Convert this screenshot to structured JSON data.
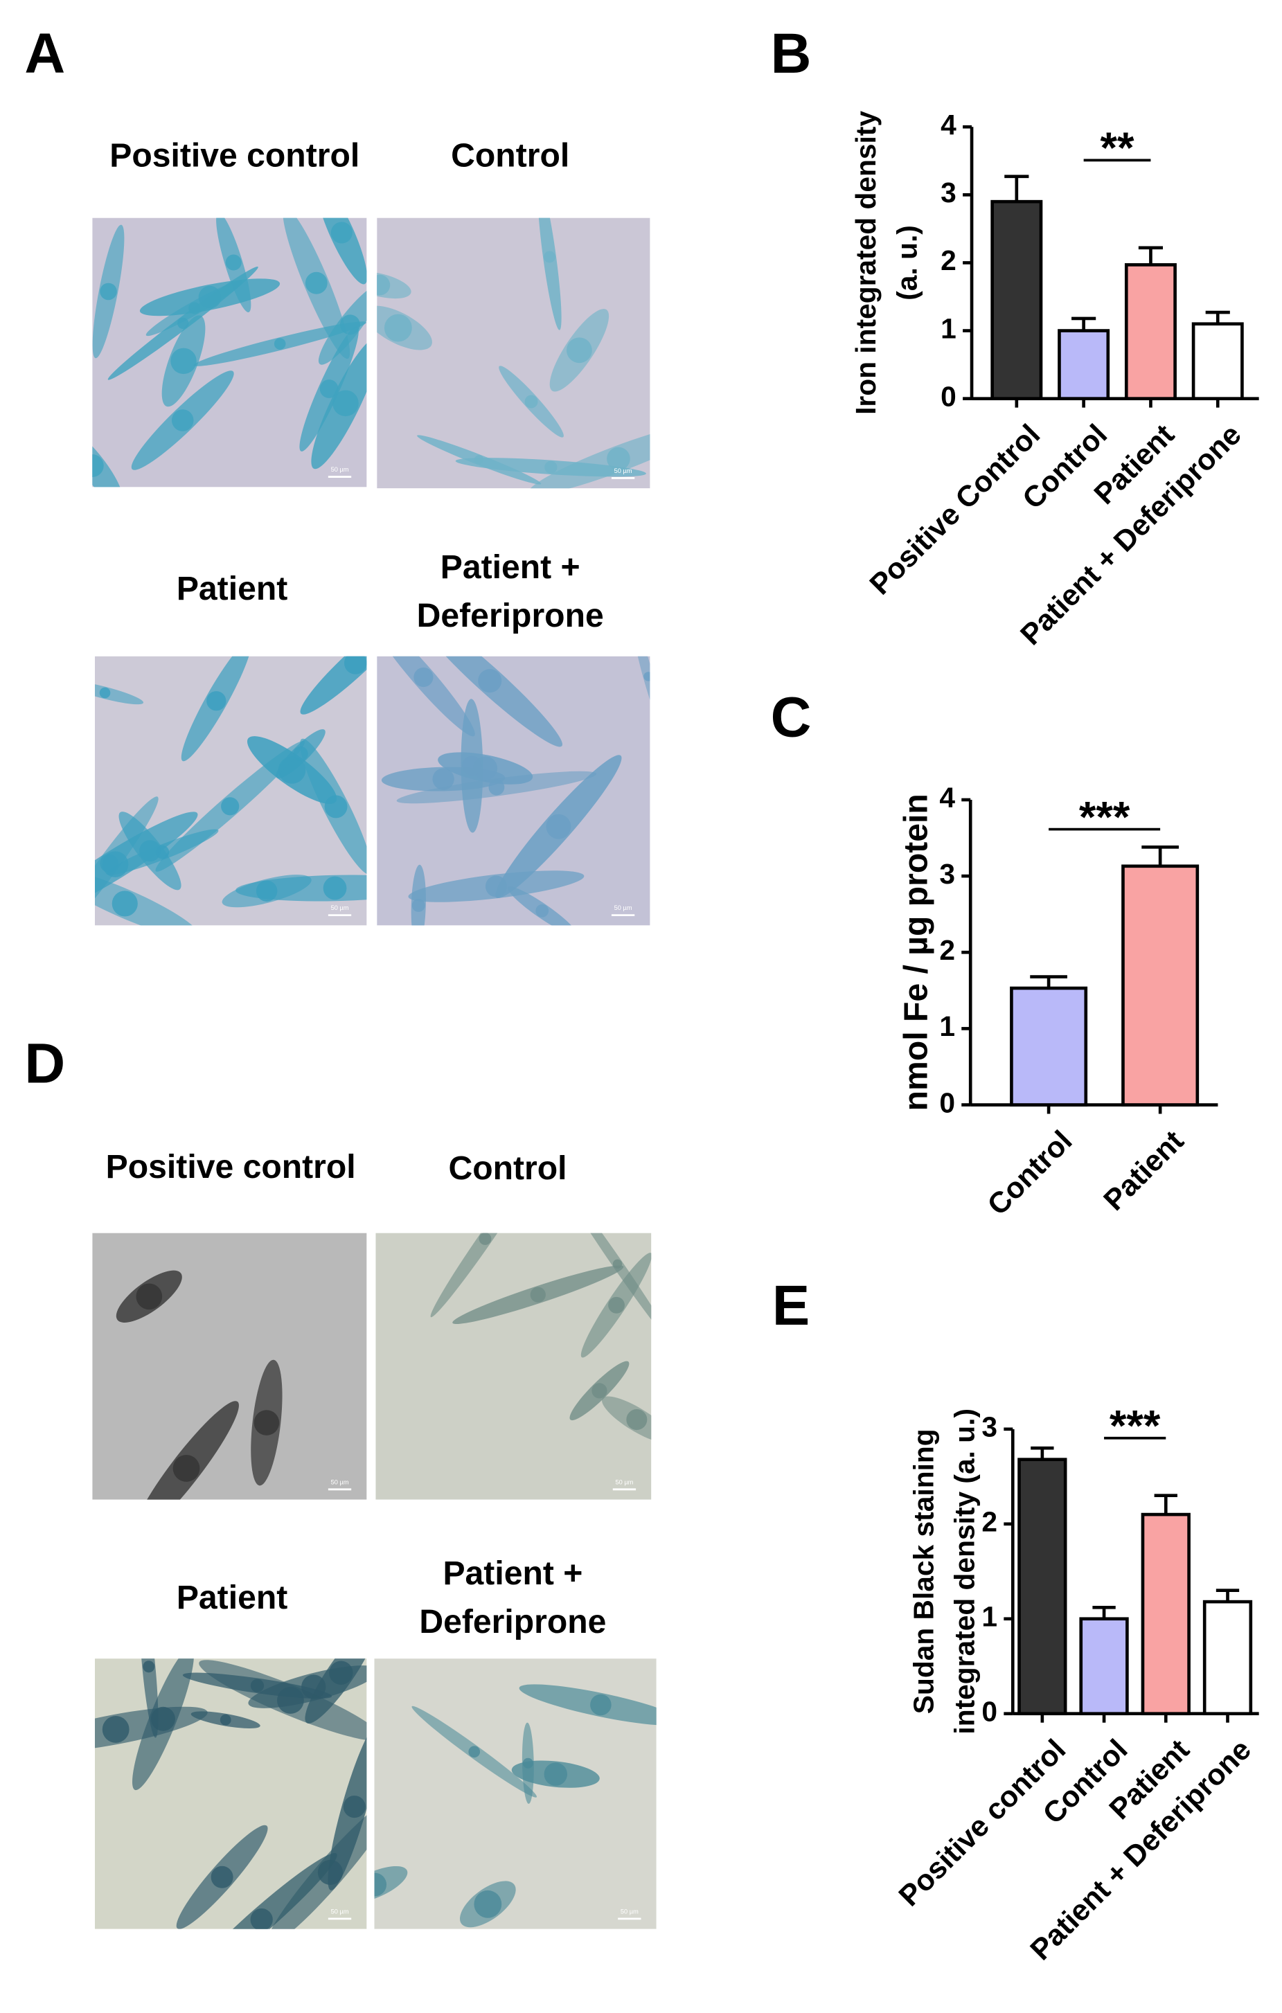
{
  "panel_labels": [
    "A",
    "B",
    "C",
    "D",
    "E"
  ],
  "panel_a": {
    "captions": [
      "Positive control",
      "Control",
      "Patient",
      "Patient + Deferiprone"
    ]
  },
  "panel_d": {
    "captions": [
      "Positive control",
      "Control",
      "Patient",
      "Patient + Deferiprone"
    ]
  },
  "scale_bar": "50 µm",
  "chart_data": [
    {
      "type": "bar",
      "ylabel": "Iron integrated density (a. u.)",
      "categories": [
        "Positive Control",
        "Control",
        "Patient",
        "Patient + Deferiprone"
      ],
      "values": [
        2.9,
        1.0,
        1.97,
        1.1
      ],
      "errors": [
        0.37,
        0.18,
        0.25,
        0.17
      ],
      "colors": [
        "#333333",
        "#b9b9f9",
        "#f9a3a3",
        "#ffffff"
      ],
      "ylim": [
        0,
        4
      ],
      "yticks": [
        0,
        1,
        2,
        3,
        4
      ],
      "significance": "**"
    },
    {
      "type": "bar",
      "ylabel": "nmol Fe / µg protein",
      "categories": [
        "Control",
        "Patient"
      ],
      "values": [
        1.53,
        3.13
      ],
      "errors": [
        0.15,
        0.25
      ],
      "colors": [
        "#b9b9f9",
        "#f9a3a3"
      ],
      "ylim": [
        0,
        4
      ],
      "yticks": [
        0,
        1,
        2,
        3,
        4
      ],
      "significance": "***"
    },
    {
      "type": "bar",
      "ylabel": "Sudan Black staining integrated density (a. u.)",
      "categories": [
        "Positive control",
        "Control",
        "Patient",
        "Patient + Deferiprone"
      ],
      "values": [
        2.68,
        1.0,
        2.1,
        1.18
      ],
      "errors": [
        0.12,
        0.12,
        0.2,
        0.12
      ],
      "colors": [
        "#333333",
        "#b9b9f9",
        "#f9a3a3",
        "#ffffff"
      ],
      "ylim": [
        0,
        3
      ],
      "yticks": [
        0,
        1,
        2,
        3
      ],
      "significance": "***"
    }
  ]
}
